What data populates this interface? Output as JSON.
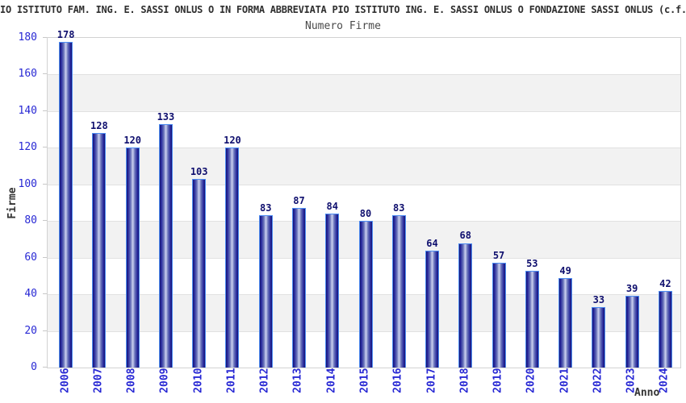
{
  "title": "IO ISTITUTO FAM. ING. E. SASSI ONLUS O IN FORMA ABBREVIATA PIO ISTITUTO ING. E. SASSI ONLUS O FONDAZIONE SASSI ONLUS (c.f.",
  "chart_data": {
    "type": "bar",
    "title": "Numero Firme",
    "xlabel": "Anno",
    "ylabel": "Firme",
    "categories": [
      "2006",
      "2007",
      "2008",
      "2009",
      "2010",
      "2011",
      "2012",
      "2013",
      "2014",
      "2015",
      "2016",
      "2017",
      "2018",
      "2019",
      "2020",
      "2021",
      "2022",
      "2023",
      "2024"
    ],
    "values": [
      178,
      128,
      120,
      133,
      103,
      120,
      83,
      87,
      84,
      80,
      83,
      64,
      68,
      57,
      53,
      49,
      33,
      39,
      42
    ],
    "ylim": [
      0,
      180
    ],
    "ytick_step": 20,
    "grid": true,
    "legend": "none",
    "colors": {
      "tick_label": "#2828d4",
      "value_label": "#0f0f6e",
      "bar_border": "#4e8df2",
      "bar_dark": "#17176e",
      "bar_light": "#cdd2f0",
      "band": "#f2f2f2",
      "gridline": "#e1e1e1",
      "plot_border": "#d2d2d2",
      "title_text": "#2f2f2f",
      "axis_title_text": "#333333"
    }
  }
}
